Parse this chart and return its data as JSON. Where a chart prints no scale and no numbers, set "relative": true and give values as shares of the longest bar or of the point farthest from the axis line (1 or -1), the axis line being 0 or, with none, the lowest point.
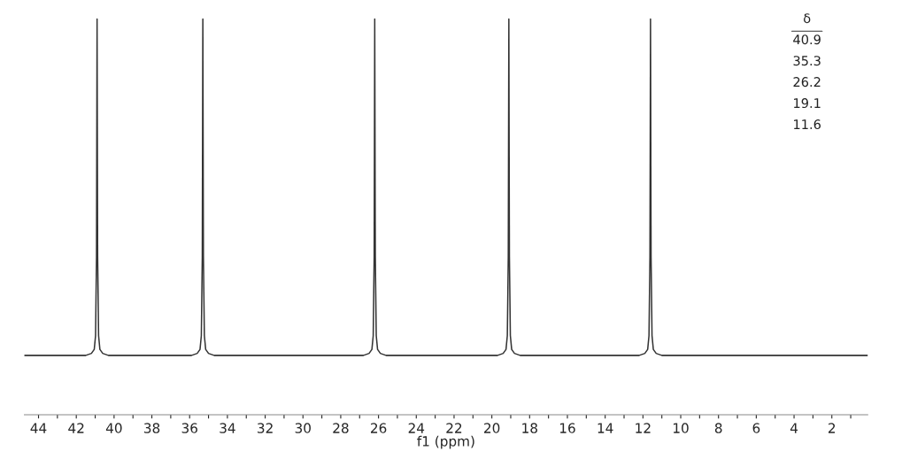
{
  "chart_data": {
    "type": "line",
    "relative": true,
    "xlabel": "f1 (ppm)",
    "x": [
      44.75,
      41.5,
      41.2,
      41.05,
      40.98,
      40.93,
      40.9,
      40.87,
      40.82,
      40.75,
      40.6,
      40.3,
      35.9,
      35.6,
      35.45,
      35.38,
      35.33,
      35.3,
      35.27,
      35.22,
      35.15,
      35.0,
      34.7,
      26.8,
      26.5,
      26.35,
      26.28,
      26.23,
      26.2,
      26.17,
      26.12,
      26.05,
      25.9,
      25.6,
      19.7,
      19.4,
      19.25,
      19.18,
      19.13,
      19.1,
      19.07,
      19.02,
      18.95,
      18.8,
      18.5,
      12.2,
      11.9,
      11.75,
      11.68,
      11.63,
      11.6,
      11.57,
      11.52,
      11.45,
      11.3,
      11.0,
      0.1
    ],
    "series": [
      {
        "color": "#333333",
        "values": [
          0.15,
          0.15,
          0.155,
          0.165,
          0.2,
          0.4,
          1,
          0.4,
          0.2,
          0.165,
          0.155,
          0.15,
          0.15,
          0.155,
          0.165,
          0.2,
          0.4,
          1,
          0.4,
          0.2,
          0.165,
          0.155,
          0.15,
          0.15,
          0.155,
          0.165,
          0.2,
          0.4,
          1,
          0.4,
          0.2,
          0.165,
          0.155,
          0.15,
          0.15,
          0.155,
          0.165,
          0.2,
          0.4,
          1,
          0.4,
          0.2,
          0.165,
          0.155,
          0.15,
          0.15,
          0.155,
          0.165,
          0.2,
          0.4,
          1,
          0.4,
          0.2,
          0.165,
          0.155,
          0.15,
          0.15
        ]
      }
    ],
    "xlim": [
      44.75,
      0.1
    ],
    "xticks": [
      44,
      {
        "value": 43,
        "label": null
      },
      42,
      {
        "value": 41,
        "label": null
      },
      40,
      {
        "value": 39,
        "label": null
      },
      38,
      {
        "value": 37,
        "label": null
      },
      36,
      {
        "value": 35,
        "label": null
      },
      34,
      {
        "value": 33,
        "label": null
      },
      32,
      {
        "value": 31,
        "label": null
      },
      30,
      {
        "value": 29,
        "label": null
      },
      28,
      {
        "value": 27,
        "label": null
      },
      26,
      {
        "value": 25,
        "label": null
      },
      24,
      {
        "value": 23,
        "label": null
      },
      22,
      {
        "value": 21,
        "label": null
      },
      20,
      {
        "value": 19,
        "label": null
      },
      18,
      {
        "value": 17,
        "label": null
      },
      16,
      {
        "value": 15,
        "label": null
      },
      14,
      {
        "value": 13,
        "label": null
      },
      12,
      {
        "value": 11,
        "label": null
      },
      10,
      {
        "value": 9,
        "label": null
      },
      8,
      {
        "value": 7,
        "label": null
      },
      6,
      {
        "value": 5,
        "label": null
      },
      4,
      {
        "value": 3,
        "label": null
      },
      2,
      {
        "value": 1,
        "label": null
      }
    ],
    "annotations": [
      "δ",
      "40.9",
      "35.3",
      "26.2",
      "19.1",
      "11.6"
    ],
    "grid": false,
    "legend": false,
    "marker": "none",
    "line_style": "solid"
  }
}
